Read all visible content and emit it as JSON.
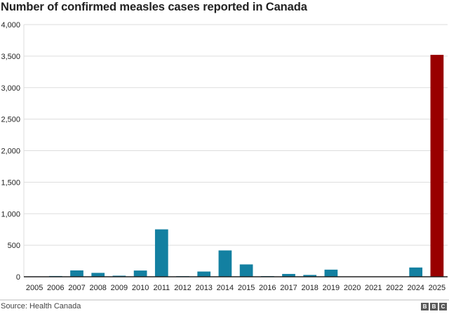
{
  "chart_data": {
    "type": "bar",
    "title": "Number of confirmed measles cases reported in Canada",
    "xlabel": "",
    "ylabel": "",
    "categories": [
      "2005",
      "2006",
      "2007",
      "2008",
      "2009",
      "2010",
      "2011",
      "2012",
      "2013",
      "2014",
      "2015",
      "2016",
      "2017",
      "2018",
      "2019",
      "2020",
      "2021",
      "2022",
      "2024",
      "2025"
    ],
    "values": [
      6,
      12,
      101,
      62,
      17,
      99,
      752,
      10,
      83,
      418,
      196,
      11,
      45,
      29,
      113,
      1,
      0,
      3,
      147,
      3520
    ],
    "highlight_index": 19,
    "colors": {
      "default": "#1380A1",
      "highlight": "#990000"
    },
    "ylim": [
      0,
      4000
    ],
    "yticks": [
      0,
      500,
      1000,
      1500,
      2000,
      2500,
      3000,
      3500,
      4000
    ],
    "ytick_labels": [
      "0",
      "500",
      "1,000",
      "1,500",
      "2,000",
      "2,500",
      "3,000",
      "3,500",
      "4,000"
    ],
    "grid": true,
    "legend": "none"
  },
  "footer": {
    "source": "Source: Health Canada",
    "logo_letters": [
      "B",
      "B",
      "C"
    ]
  }
}
